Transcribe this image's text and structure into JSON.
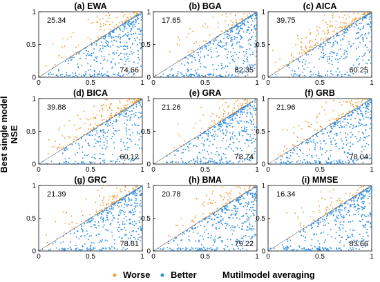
{
  "figure": {
    "ylabel_line1": "Best single model",
    "ylabel_line2": "NSE",
    "xlabel": "Mutilmodel averaging",
    "legend": [
      {
        "label": "Worse",
        "color": "#f4a03a"
      },
      {
        "label": "Better",
        "color": "#2f8fe8"
      }
    ]
  },
  "chart_data": [
    {
      "type": "scatter",
      "title": "(a) EWA",
      "worse_pct": "25.34",
      "better_pct": "74.66",
      "xlim": [
        0,
        1
      ],
      "ylim": [
        0,
        1
      ],
      "xticks": [
        "0",
        "0.5",
        "1"
      ],
      "yticks": [
        "0",
        "0.5",
        "1"
      ]
    },
    {
      "type": "scatter",
      "title": "(b) BGA",
      "worse_pct": "17.65",
      "better_pct": "82.35",
      "xlim": [
        0,
        1
      ],
      "ylim": [
        0,
        1
      ],
      "xticks": [
        "0",
        "0.5",
        "1"
      ],
      "yticks": [
        "0",
        "0.5",
        "1"
      ]
    },
    {
      "type": "scatter",
      "title": "(c) AICA",
      "worse_pct": "39.75",
      "better_pct": "60.25",
      "xlim": [
        0,
        1
      ],
      "ylim": [
        0,
        1
      ],
      "xticks": [
        "0",
        "0.5",
        "1"
      ],
      "yticks": [
        "0",
        "0.5",
        "1"
      ]
    },
    {
      "type": "scatter",
      "title": "(d) BICA",
      "worse_pct": "39.88",
      "better_pct": "60.12",
      "xlim": [
        0,
        1
      ],
      "ylim": [
        0,
        1
      ],
      "xticks": [
        "0",
        "0.5",
        "1"
      ],
      "yticks": [
        "0",
        "0.5",
        "1"
      ]
    },
    {
      "type": "scatter",
      "title": "(e) GRA",
      "worse_pct": "21.26",
      "better_pct": "78.74",
      "xlim": [
        0,
        1
      ],
      "ylim": [
        0,
        1
      ],
      "xticks": [
        "0",
        "0.5",
        "1"
      ],
      "yticks": [
        "0",
        "0.5",
        "1"
      ]
    },
    {
      "type": "scatter",
      "title": "(f) GRB",
      "worse_pct": "21.96",
      "better_pct": "78.04",
      "xlim": [
        0,
        1
      ],
      "ylim": [
        0,
        1
      ],
      "xticks": [
        "0",
        "0.5",
        "1"
      ],
      "yticks": [
        "0",
        "0.5",
        "1"
      ]
    },
    {
      "type": "scatter",
      "title": "(g) GRC",
      "worse_pct": "21.39",
      "better_pct": "78.61",
      "xlim": [
        0,
        1
      ],
      "ylim": [
        0,
        1
      ],
      "xticks": [
        "0",
        "0.5",
        "1"
      ],
      "yticks": [
        "0",
        "0.5",
        "1"
      ]
    },
    {
      "type": "scatter",
      "title": "(h) BMA",
      "worse_pct": "20.78",
      "better_pct": "79.22",
      "xlim": [
        0,
        1
      ],
      "ylim": [
        0,
        1
      ],
      "xticks": [
        "0",
        "0.5",
        "1"
      ],
      "yticks": [
        "0",
        "0.5",
        "1"
      ]
    },
    {
      "type": "scatter",
      "title": "(i) MMSE",
      "worse_pct": "16.34",
      "better_pct": "83.66",
      "xlim": [
        0,
        1
      ],
      "ylim": [
        0,
        1
      ],
      "xticks": [
        "0",
        "0.5",
        "1"
      ],
      "yticks": [
        "0",
        "0.5",
        "1"
      ]
    }
  ]
}
